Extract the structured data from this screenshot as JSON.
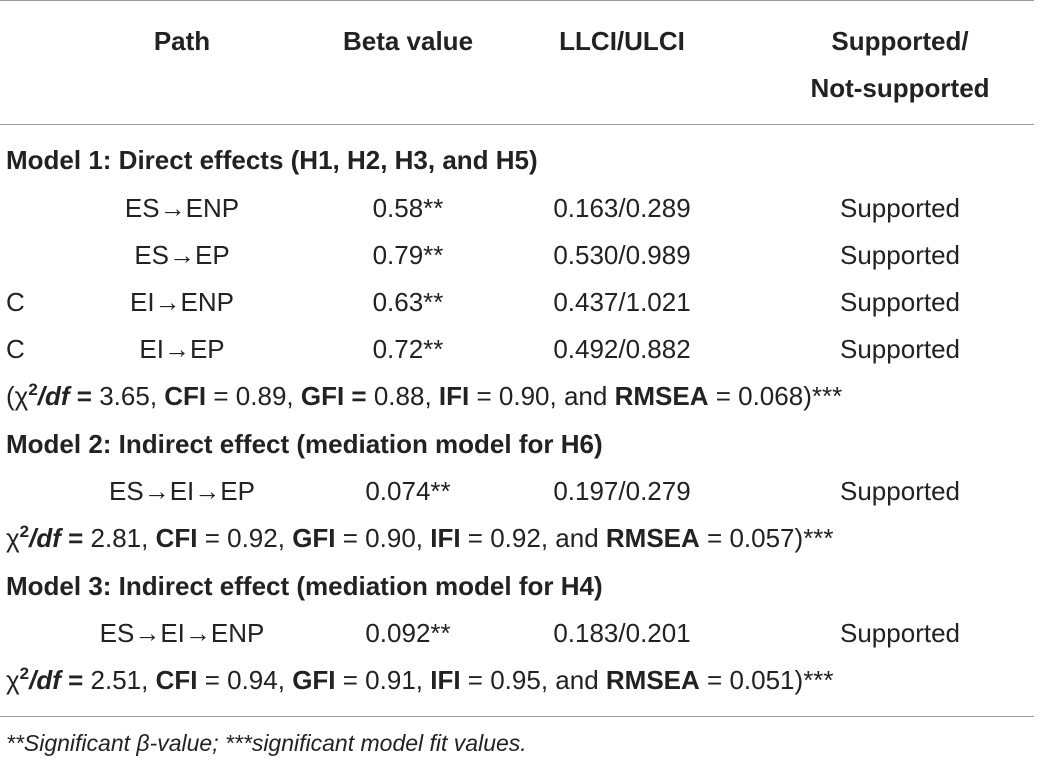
{
  "headers": {
    "path": "Path",
    "beta": "Beta value",
    "ci": "LLCI/ULCI",
    "supported_line1": "Supported/",
    "supported_line2": "Not-supported"
  },
  "models": [
    {
      "title": "Model 1: Direct effects (H1, H2, H3, and H5)",
      "rows": [
        {
          "prefix": "",
          "path": "ES→ENP",
          "beta": "0.58**",
          "ci": "0.163/0.289",
          "status": "Supported"
        },
        {
          "prefix": "",
          "path": "ES→EP",
          "beta": "0.79**",
          "ci": "0.530/0.989",
          "status": "Supported"
        },
        {
          "prefix": "C",
          "path": "EI→ENP",
          "beta": "0.63**",
          "ci": "0.437/1.021",
          "status": "Supported"
        },
        {
          "prefix": "C",
          "path": "EI→EP",
          "beta": "0.72**",
          "ci": "0.492/0.882",
          "status": "Supported"
        }
      ],
      "fit": {
        "open": "(",
        "chi_val": "3.65",
        "cfi": "0.89",
        "gfi": "0.88",
        "ifi": "0.90",
        "rmsea": "0.068"
      }
    },
    {
      "title": "Model 2: Indirect effect (mediation model for H6)",
      "rows": [
        {
          "prefix": "",
          "path": "ES→EI→EP",
          "beta": "0.074**",
          "ci": "0.197/0.279",
          "status": "Supported"
        }
      ],
      "fit": {
        "open": "",
        "chi_val": "2.81",
        "cfi": "0.92",
        "gfi": "0.90",
        "ifi": "0.92",
        "rmsea": "0.057"
      }
    },
    {
      "title": "Model 3: Indirect effect (mediation model for H4)",
      "rows": [
        {
          "prefix": "",
          "path": "ES→EI→ENP",
          "beta": "0.092**",
          "ci": "0.183/0.201",
          "status": "Supported"
        }
      ],
      "fit": {
        "open": "",
        "chi_val": "2.51",
        "cfi": "0.94",
        "gfi": "0.91",
        "ifi": "0.95",
        "rmsea": "0.051"
      }
    }
  ],
  "fit_labels": {
    "chi": "χ",
    "sup": "2",
    "slash_df": "/df",
    "eq_bold": " = ",
    "cfi": "CFI",
    "gfi": "GFI",
    "gfi_eq": " = ",
    "ifi": "IFI",
    "and": "and",
    "rmsea": "RMSEA",
    "close": ")***"
  },
  "footnote": "**Significant β-value; ***significant model fit values."
}
